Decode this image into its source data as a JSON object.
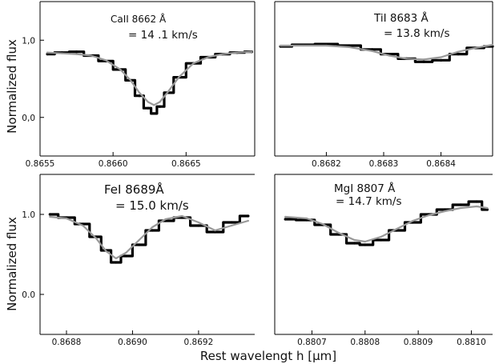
{
  "figure": {
    "ylabel_top": "Normalized flux",
    "ylabel_bottom": "Normalized flux",
    "xlabel": "Rest wavelengt h [μm]"
  },
  "chart_data": [
    {
      "type": "line",
      "panel": "top-left",
      "annotation": [
        "CaII  8662 Å",
        "= 14 .1 km/s"
      ],
      "xlim": [
        0.8655,
        0.86697
      ],
      "ylim": [
        -0.5,
        1.5
      ],
      "x_ticks": [
        0.8655,
        0.866,
        0.8665
      ],
      "x_tick_labels": [
        "0.8655",
        "0.8660",
        "0.8665"
      ],
      "y_ticks": [
        1.0,
        0.0
      ],
      "y_tick_labels": [
        "1,0",
        "0,0"
      ],
      "line_center": 0.86628,
      "series": [
        {
          "kind": "observed",
          "color": "#000000",
          "x": [
            0.86555,
            0.86565,
            0.86575,
            0.86585,
            0.86595,
            0.86605,
            0.86612,
            0.86618,
            0.86624,
            0.86628,
            0.86632,
            0.86638,
            0.86645,
            0.86655,
            0.86665,
            0.86675,
            0.86685,
            0.86695
          ],
          "y": [
            0.82,
            0.84,
            0.85,
            0.8,
            0.73,
            0.62,
            0.48,
            0.28,
            0.12,
            0.05,
            0.14,
            0.32,
            0.52,
            0.7,
            0.78,
            0.82,
            0.84,
            0.85
          ]
        },
        {
          "kind": "model",
          "color": "#999999",
          "x": [
            0.86555,
            0.86565,
            0.86575,
            0.86585,
            0.86595,
            0.86605,
            0.86612,
            0.86618,
            0.86624,
            0.86628,
            0.86632,
            0.86638,
            0.86645,
            0.86655,
            0.86665,
            0.86675,
            0.86685,
            0.86695
          ],
          "y": [
            0.84,
            0.83,
            0.82,
            0.8,
            0.74,
            0.62,
            0.48,
            0.32,
            0.2,
            0.16,
            0.2,
            0.34,
            0.52,
            0.7,
            0.78,
            0.82,
            0.84,
            0.85
          ]
        }
      ]
    },
    {
      "type": "line",
      "panel": "top-right",
      "annotation": [
        "TiI    8683 Å",
        "= 13.8 km/s"
      ],
      "xlim": [
        0.86811,
        0.86849
      ],
      "ylim": [
        -0.5,
        1.5
      ],
      "x_ticks": [
        0.8682,
        0.8683,
        0.8684
      ],
      "x_tick_labels": [
        "0.8682",
        "0.8683",
        "0.8684"
      ],
      "y_ticks": [],
      "y_tick_labels": [],
      "line_center": 0.86835,
      "series": [
        {
          "kind": "observed",
          "color": "#000000",
          "x": [
            0.86812,
            0.86816,
            0.8682,
            0.86824,
            0.86828,
            0.86831,
            0.86834,
            0.86837,
            0.8684,
            0.86843,
            0.86846,
            0.86849
          ],
          "y": [
            0.92,
            0.94,
            0.95,
            0.93,
            0.88,
            0.82,
            0.76,
            0.72,
            0.74,
            0.82,
            0.9,
            0.92
          ]
        },
        {
          "kind": "model",
          "color": "#999999",
          "x": [
            0.86812,
            0.86816,
            0.8682,
            0.86824,
            0.86828,
            0.86831,
            0.86834,
            0.86837,
            0.8684,
            0.86843,
            0.86846,
            0.86849
          ],
          "y": [
            0.93,
            0.93,
            0.93,
            0.91,
            0.86,
            0.8,
            0.76,
            0.75,
            0.78,
            0.85,
            0.9,
            0.94
          ]
        }
      ]
    },
    {
      "type": "line",
      "panel": "bottom-left",
      "annotation": [
        "FeI   8689Å",
        "= 15.0 km/s"
      ],
      "xlim": [
        0.86872,
        0.86937
      ],
      "ylim": [
        -0.5,
        1.5
      ],
      "x_ticks": [
        0.8688,
        0.869,
        0.8692
      ],
      "x_tick_labels": [
        "0.8688",
        "0.8690",
        "0.8692"
      ],
      "y_ticks": [
        1.0,
        0.0
      ],
      "y_tick_labels": [
        "1.0",
        "0.0"
      ],
      "line_center": 0.86895,
      "series": [
        {
          "kind": "observed",
          "color": "#000000",
          "x": [
            0.86875,
            0.8688,
            0.86885,
            0.86889,
            0.86892,
            0.86895,
            0.86898,
            0.86902,
            0.86906,
            0.8691,
            0.86915,
            0.8692,
            0.86925,
            0.8693,
            0.86935
          ],
          "y": [
            1.0,
            0.96,
            0.88,
            0.72,
            0.55,
            0.4,
            0.48,
            0.62,
            0.8,
            0.92,
            0.96,
            0.86,
            0.78,
            0.9,
            0.98
          ]
        },
        {
          "kind": "model",
          "color": "#999999",
          "x": [
            0.86875,
            0.8688,
            0.86885,
            0.86889,
            0.86892,
            0.86895,
            0.86898,
            0.86902,
            0.86906,
            0.8691,
            0.86915,
            0.8692,
            0.86925,
            0.8693,
            0.86935
          ],
          "y": [
            0.97,
            0.95,
            0.86,
            0.7,
            0.54,
            0.45,
            0.52,
            0.68,
            0.84,
            0.94,
            0.98,
            0.9,
            0.8,
            0.86,
            0.92
          ]
        }
      ]
    },
    {
      "type": "line",
      "panel": "bottom-right",
      "annotation": [
        "MgI  8807 Å",
        "= 14.7 km/s"
      ],
      "xlim": [
        0.88063,
        0.88104
      ],
      "ylim": [
        -0.5,
        1.5
      ],
      "x_ticks": [
        0.8807,
        0.8808,
        0.8809,
        0.881
      ],
      "x_tick_labels": [
        "0.8807",
        "0.8808",
        "0.8809",
        "0.8810"
      ],
      "y_ticks": [],
      "y_tick_labels": [],
      "line_center": 0.88079,
      "series": [
        {
          "kind": "observed",
          "color": "#000000",
          "x": [
            0.88065,
            0.88069,
            0.88072,
            0.88075,
            0.88078,
            0.8808,
            0.88083,
            0.88086,
            0.88089,
            0.88092,
            0.88095,
            0.88098,
            0.88101,
            0.88103
          ],
          "y": [
            0.94,
            0.93,
            0.87,
            0.75,
            0.64,
            0.62,
            0.68,
            0.8,
            0.9,
            1.0,
            1.06,
            1.12,
            1.16,
            1.06
          ]
        },
        {
          "kind": "model",
          "color": "#999999",
          "x": [
            0.88065,
            0.88069,
            0.88072,
            0.88075,
            0.88078,
            0.8808,
            0.88083,
            0.88086,
            0.88089,
            0.88092,
            0.88095,
            0.88098,
            0.88101,
            0.88103
          ],
          "y": [
            0.97,
            0.95,
            0.88,
            0.77,
            0.68,
            0.66,
            0.72,
            0.82,
            0.92,
            0.99,
            1.04,
            1.08,
            1.1,
            1.08
          ]
        }
      ]
    }
  ]
}
